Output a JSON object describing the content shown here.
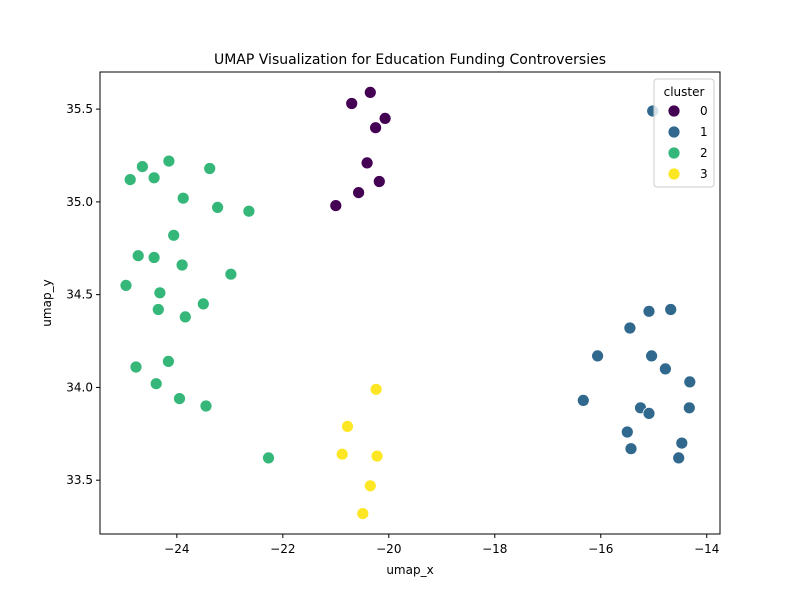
{
  "chart_data": {
    "type": "scatter",
    "title": "UMAP Visualization for Education Funding Controversies",
    "xlabel": "umap_x",
    "ylabel": "umap_y",
    "xlim": [
      -25.45,
      -13.75
    ],
    "ylim": [
      33.21,
      35.7
    ],
    "xticks": [
      -24,
      -22,
      -20,
      -18,
      -16,
      -14
    ],
    "yticks": [
      33.5,
      34.0,
      34.5,
      35.0,
      35.5
    ],
    "xtick_labels": [
      "−24",
      "−22",
      "−20",
      "−18",
      "−16",
      "−14"
    ],
    "ytick_labels": [
      "33.5",
      "34.0",
      "34.5",
      "35.0",
      "35.5"
    ],
    "grid": false,
    "legend": {
      "title": "cluster",
      "placement": "top-right"
    },
    "series": [
      {
        "name": "0",
        "color": "#440154",
        "points": [
          [
            -20.7,
            35.53
          ],
          [
            -20.35,
            35.59
          ],
          [
            -20.07,
            35.45
          ],
          [
            -20.25,
            35.4
          ],
          [
            -20.41,
            35.21
          ],
          [
            -20.18,
            35.11
          ],
          [
            -20.57,
            35.05
          ],
          [
            -21.0,
            34.98
          ]
        ]
      },
      {
        "name": "1",
        "color": "#31688e",
        "points": [
          [
            -15.02,
            35.49
          ],
          [
            -14.68,
            34.42
          ],
          [
            -15.09,
            34.41
          ],
          [
            -15.45,
            34.32
          ],
          [
            -16.06,
            34.17
          ],
          [
            -15.04,
            34.17
          ],
          [
            -14.78,
            34.1
          ],
          [
            -14.32,
            34.03
          ],
          [
            -16.33,
            33.93
          ],
          [
            -15.25,
            33.89
          ],
          [
            -14.33,
            33.89
          ],
          [
            -15.09,
            33.86
          ],
          [
            -15.5,
            33.76
          ],
          [
            -14.47,
            33.7
          ],
          [
            -15.43,
            33.67
          ],
          [
            -14.53,
            33.62
          ]
        ]
      },
      {
        "name": "2",
        "color": "#35b779",
        "points": [
          [
            -24.15,
            35.22
          ],
          [
            -24.65,
            35.19
          ],
          [
            -23.38,
            35.18
          ],
          [
            -24.88,
            35.12
          ],
          [
            -24.43,
            35.13
          ],
          [
            -23.88,
            35.02
          ],
          [
            -23.23,
            34.97
          ],
          [
            -22.64,
            34.95
          ],
          [
            -24.06,
            34.82
          ],
          [
            -24.73,
            34.71
          ],
          [
            -24.43,
            34.7
          ],
          [
            -23.9,
            34.66
          ],
          [
            -22.98,
            34.61
          ],
          [
            -24.96,
            34.55
          ],
          [
            -24.32,
            34.51
          ],
          [
            -23.5,
            34.45
          ],
          [
            -24.35,
            34.42
          ],
          [
            -23.84,
            34.38
          ],
          [
            -24.16,
            34.14
          ],
          [
            -24.77,
            34.11
          ],
          [
            -24.39,
            34.02
          ],
          [
            -23.95,
            33.94
          ],
          [
            -23.45,
            33.9
          ],
          [
            -22.27,
            33.62
          ]
        ]
      },
      {
        "name": "3",
        "color": "#fde725",
        "points": [
          [
            -20.24,
            33.99
          ],
          [
            -20.78,
            33.79
          ],
          [
            -20.88,
            33.64
          ],
          [
            -20.22,
            33.63
          ],
          [
            -20.35,
            33.47
          ],
          [
            -20.49,
            33.32
          ]
        ]
      }
    ]
  }
}
